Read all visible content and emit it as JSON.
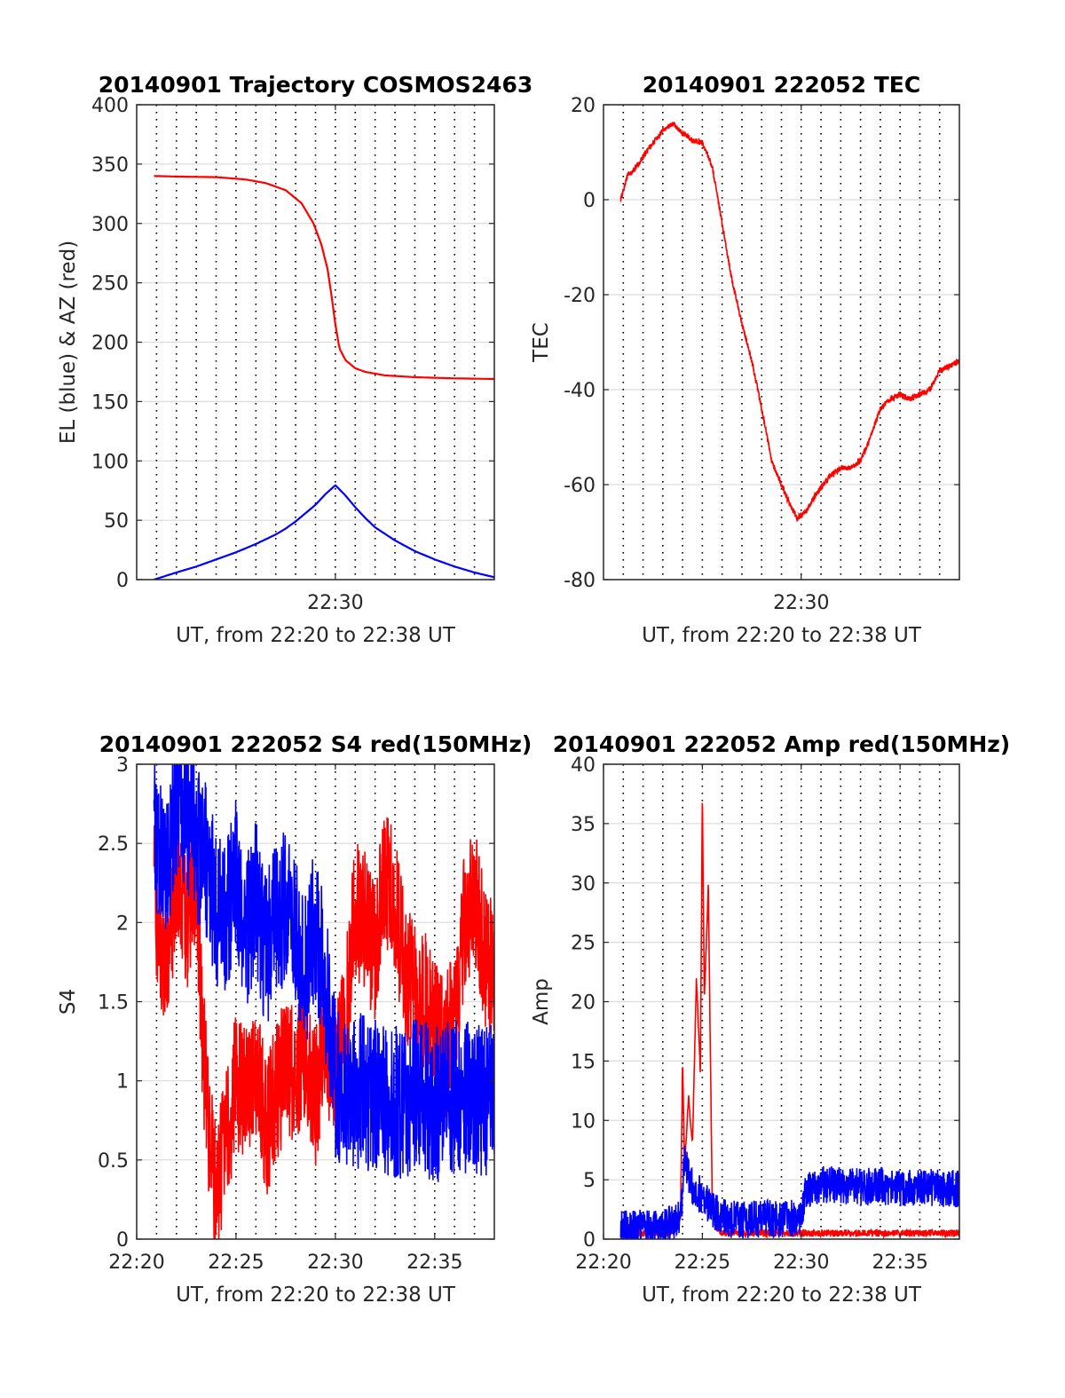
{
  "chart_data": [
    {
      "id": "traj",
      "type": "line",
      "title": "20140901 Trajectory COSMOS2463",
      "xlabel": "UT, from 22:20 to 22:38 UT",
      "ylabel": "EL (blue) & AZ (red)",
      "xlim": [
        0,
        18
      ],
      "ylim": [
        0,
        400
      ],
      "x_ticks": [
        {
          "value": 10,
          "label": "22:30"
        }
      ],
      "y_ticks": [
        {
          "value": 0,
          "label": "0"
        },
        {
          "value": 50,
          "label": "50"
        },
        {
          "value": 100,
          "label": "100"
        },
        {
          "value": 150,
          "label": "150"
        },
        {
          "value": 200,
          "label": "200"
        },
        {
          "value": 250,
          "label": "250"
        },
        {
          "value": 300,
          "label": "300"
        },
        {
          "value": 350,
          "label": "350"
        },
        {
          "value": 400,
          "label": "400"
        }
      ],
      "grid": true,
      "series": [
        {
          "color": "#ff0000",
          "x": [
            0.87,
            2,
            4,
            5.5,
            6.5,
            7.5,
            8.3,
            8.9,
            9.3,
            9.6,
            9.8,
            10.0,
            10.2,
            10.5,
            11,
            11.5,
            12.5,
            14,
            16,
            18
          ],
          "y": [
            340,
            339.5,
            339,
            337,
            334,
            328,
            317,
            300,
            282,
            262,
            240,
            215,
            195,
            185,
            178,
            175,
            172,
            170.5,
            169.5,
            169
          ]
        },
        {
          "color": "#0000ff",
          "x": [
            0.87,
            2,
            3,
            4,
            5,
            6,
            7,
            7.5,
            8,
            8.5,
            9,
            9.5,
            10.0,
            10.5,
            11,
            11.5,
            12,
            13,
            14,
            15,
            16,
            17,
            18
          ],
          "y": [
            0,
            6,
            11,
            17,
            23,
            30,
            38,
            43,
            49,
            56,
            63,
            72,
            79.5,
            71,
            61,
            52,
            44,
            33,
            24,
            17,
            11,
            6,
            2
          ]
        }
      ]
    },
    {
      "id": "tec",
      "type": "line",
      "title": "20140901 222052 TEC",
      "xlabel": "UT, from 22:20 to 22:38 UT",
      "ylabel": "TEC",
      "xlim": [
        0,
        18
      ],
      "ylim": [
        -80,
        20
      ],
      "x_ticks": [
        {
          "value": 10,
          "label": "22:30"
        }
      ],
      "y_ticks": [
        {
          "value": -80,
          "label": "-80"
        },
        {
          "value": -60,
          "label": "-60"
        },
        {
          "value": -40,
          "label": "-40"
        },
        {
          "value": -20,
          "label": "-20"
        },
        {
          "value": 0,
          "label": "0"
        },
        {
          "value": 20,
          "label": "20"
        }
      ],
      "grid": true,
      "series": [
        {
          "color": "#ff0000",
          "noise": 0.6,
          "x": [
            0.87,
            1.2,
            1.5,
            2,
            2.5,
            3,
            3.5,
            4,
            4.5,
            5,
            5.5,
            6,
            6.5,
            7,
            7.5,
            8,
            8.5,
            9,
            9.4,
            9.8,
            10.2,
            10.6,
            11,
            11.5,
            12,
            12.5,
            13,
            13.5,
            14,
            14.5,
            15,
            15.5,
            16,
            16.5,
            17,
            17.5,
            18
          ],
          "y": [
            0,
            5,
            6,
            9,
            12,
            14.5,
            16,
            14,
            12.5,
            12,
            7,
            -5,
            -17,
            -26,
            -34,
            -44,
            -55,
            -60,
            -64,
            -67,
            -66,
            -63,
            -60.5,
            -58,
            -56.5,
            -56.5,
            -55,
            -50,
            -44,
            -42,
            -41,
            -42,
            -41,
            -40,
            -36,
            -35,
            -34
          ]
        }
      ]
    },
    {
      "id": "s4",
      "type": "line",
      "title": "20140901 222052 S4 red(150MHz)",
      "xlabel": "UT, from 22:20 to 22:38 UT",
      "ylabel": "S4",
      "xlim": [
        0,
        18
      ],
      "ylim": [
        0,
        3
      ],
      "x_ticks": [
        {
          "value": 0,
          "label": "22:20"
        },
        {
          "value": 5,
          "label": "22:25"
        },
        {
          "value": 10,
          "label": "22:30"
        },
        {
          "value": 15,
          "label": "22:35"
        }
      ],
      "y_ticks": [
        {
          "value": 0,
          "label": "0"
        },
        {
          "value": 0.5,
          "label": "0.5"
        },
        {
          "value": 1,
          "label": "1"
        },
        {
          "value": 1.5,
          "label": "1.5"
        },
        {
          "value": 2,
          "label": "2"
        },
        {
          "value": 2.5,
          "label": "2.5"
        },
        {
          "value": 3,
          "label": "3"
        }
      ],
      "grid": true,
      "series": [
        {
          "color": "#ff0000",
          "noise": 0.45,
          "x": [
            0.87,
            1.5,
            2,
            2.5,
            3,
            3.3,
            3.6,
            4,
            4.5,
            5,
            5.5,
            6,
            6.5,
            7,
            7.5,
            8,
            8.5,
            9,
            9.5,
            10,
            10.5,
            11,
            11.5,
            12,
            12.5,
            13,
            13.5,
            14,
            14.5,
            15,
            15.5,
            16,
            16.5,
            17,
            17.5,
            18
          ],
          "y": [
            2.2,
            1.6,
            2.4,
            2.0,
            2.3,
            1.3,
            0.7,
            0.3,
            0.6,
            1.0,
            0.9,
            1.1,
            0.7,
            0.9,
            1.1,
            1.0,
            1.2,
            0.9,
            1.3,
            1.0,
            1.4,
            2.1,
            2.0,
            1.8,
            2.3,
            2.1,
            1.7,
            1.6,
            1.5,
            1.3,
            1.2,
            1.4,
            2.0,
            2.2,
            1.8,
            1.7
          ]
        },
        {
          "color": "#0000ff",
          "noise": 0.5,
          "x": [
            0.87,
            1.5,
            2,
            2.5,
            3,
            3.5,
            4,
            4.5,
            5,
            5.5,
            6,
            6.5,
            7,
            7.5,
            8,
            8.5,
            9,
            9.5,
            10,
            10.5,
            11,
            12,
            13,
            14,
            15,
            16,
            17,
            18
          ],
          "y": [
            2.6,
            2.3,
            2.8,
            2.7,
            2.5,
            2.4,
            2.1,
            2.0,
            2.3,
            1.9,
            2.2,
            1.8,
            2.0,
            2.1,
            1.9,
            1.7,
            2.0,
            1.6,
            1.0,
            0.9,
            0.95,
            0.9,
            0.85,
            0.9,
            0.85,
            0.9,
            0.9,
            0.88
          ]
        }
      ]
    },
    {
      "id": "amp",
      "type": "line",
      "title": "20140901 222052 Amp red(150MHz)",
      "xlabel": "UT, from 22:20 to 22:38 UT",
      "ylabel": "Amp",
      "xlim": [
        0,
        18
      ],
      "ylim": [
        0,
        40
      ],
      "x_ticks": [
        {
          "value": 0,
          "label": "22:20"
        },
        {
          "value": 5,
          "label": "22:25"
        },
        {
          "value": 10,
          "label": "22:30"
        },
        {
          "value": 15,
          "label": "22:35"
        }
      ],
      "y_ticks": [
        {
          "value": 0,
          "label": "0"
        },
        {
          "value": 5,
          "label": "5"
        },
        {
          "value": 10,
          "label": "10"
        },
        {
          "value": 15,
          "label": "15"
        },
        {
          "value": 20,
          "label": "20"
        },
        {
          "value": 25,
          "label": "25"
        },
        {
          "value": 30,
          "label": "30"
        },
        {
          "value": 35,
          "label": "35"
        },
        {
          "value": 40,
          "label": "40"
        }
      ],
      "grid": true,
      "series": [
        {
          "color": "#ff0000",
          "noise": 0.3,
          "x": [
            0.87,
            3.5,
            3.9,
            4.0,
            4.1,
            4.3,
            4.5,
            4.7,
            4.9,
            5.0,
            5.1,
            5.3,
            5.5,
            5.7,
            6,
            8,
            10,
            12,
            14,
            16,
            18
          ],
          "y": [
            0.5,
            0.5,
            2,
            15,
            6,
            12,
            8,
            22,
            14,
            37.5,
            20,
            30,
            3,
            1,
            0.5,
            0.5,
            0.5,
            0.5,
            0.5,
            0.5,
            0.5
          ]
        },
        {
          "color": "#0000ff",
          "noise": 1.6,
          "x": [
            0.87,
            2,
            3,
            3.5,
            3.9,
            4.1,
            4.5,
            5.0,
            5.5,
            6,
            7,
            8,
            9,
            10,
            10.2,
            10.6,
            11,
            12,
            13,
            14,
            15,
            16,
            17,
            18
          ],
          "y": [
            0.8,
            0.9,
            1.0,
            1.3,
            1.8,
            6.5,
            4.5,
            3.5,
            2.5,
            1.8,
            1.6,
            1.7,
            1.7,
            1.8,
            4.0,
            4.4,
            4.6,
            4.5,
            4.4,
            4.5,
            4.3,
            4.4,
            4.3,
            4.2
          ]
        }
      ]
    }
  ]
}
